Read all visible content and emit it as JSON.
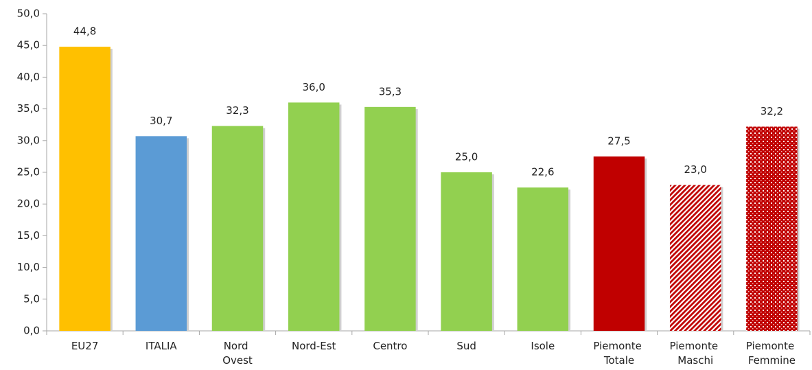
{
  "chart_data": {
    "type": "bar",
    "categories": [
      "EU27",
      "ITALIA",
      "Nord Ovest",
      "Nord-Est",
      "Centro",
      "Sud",
      "Isole",
      "Piemonte Totale",
      "Piemonte Maschi",
      "Piemonte Femmine"
    ],
    "values": [
      44.8,
      30.7,
      32.3,
      36.0,
      35.3,
      25.0,
      22.6,
      27.5,
      23.0,
      32.2
    ],
    "value_labels": [
      "44,8",
      "30,7",
      "32,3",
      "36,0",
      "35,3",
      "25,0",
      "22,6",
      "27,5",
      "23,0",
      "32,2"
    ],
    "colors": [
      "#ffc000",
      "#5b9bd5",
      "#92d050",
      "#92d050",
      "#92d050",
      "#92d050",
      "#92d050",
      "#c00000",
      "#c00000",
      "#c00000"
    ],
    "fill_patterns": [
      "solid",
      "solid",
      "solid",
      "solid",
      "solid",
      "solid",
      "solid",
      "solid",
      "diagonal-hatch",
      "dotted"
    ],
    "ylim": [
      0,
      50
    ],
    "yticks": [
      {
        "value": 0,
        "label": "0,0"
      },
      {
        "value": 5,
        "label": "5,0"
      },
      {
        "value": 10,
        "label": "10,0"
      },
      {
        "value": 15,
        "label": "15,0"
      },
      {
        "value": 20,
        "label": "20,0"
      },
      {
        "value": 25,
        "label": "25,0"
      },
      {
        "value": 30,
        "label": "30,0"
      },
      {
        "value": 35,
        "label": "35,0"
      },
      {
        "value": 40,
        "label": "40,0"
      },
      {
        "value": 45,
        "label": "45,0"
      },
      {
        "value": 50,
        "label": "50,0"
      }
    ],
    "grid": false
  }
}
